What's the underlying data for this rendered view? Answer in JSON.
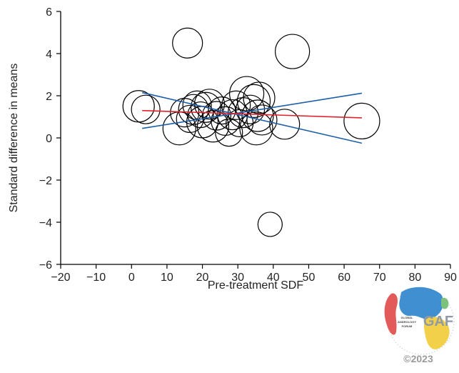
{
  "chart_data": {
    "type": "scatter",
    "title": "",
    "xlabel": "Pre-treatment SDF",
    "ylabel": "Standard difference in means",
    "xlim": [
      -20,
      90
    ],
    "ylim": [
      -6,
      6
    ],
    "x_ticks": [
      -20,
      -10,
      0,
      10,
      20,
      30,
      40,
      50,
      60,
      70,
      80,
      90
    ],
    "y_ticks": [
      -6,
      -4,
      -2,
      0,
      2,
      4,
      6
    ],
    "x_tick_labels": [
      "−20",
      "−10",
      "0",
      "10",
      "20",
      "30",
      "40",
      "50",
      "60",
      "70",
      "80",
      "90"
    ],
    "y_tick_labels": [
      "−6",
      "−4",
      "−2",
      "0",
      "2",
      "4",
      "6"
    ],
    "grid": false,
    "bubble_color": "#000000",
    "regression_color": "#e0202a",
    "confidence_color": "#1f5fa8",
    "bubbles": [
      {
        "x": 2,
        "y": 1.5,
        "weight": 22
      },
      {
        "x": 4,
        "y": 1.35,
        "weight": 20
      },
      {
        "x": 15.8,
        "y": 4.5,
        "weight": 21
      },
      {
        "x": 45.4,
        "y": 4.1,
        "weight": 24
      },
      {
        "x": 39.1,
        "y": -4.1,
        "weight": 17
      },
      {
        "x": 65,
        "y": 0.8,
        "weight": 25
      },
      {
        "x": 13.5,
        "y": 0.45,
        "weight": 23
      },
      {
        "x": 15,
        "y": 1.2,
        "weight": 20
      },
      {
        "x": 16.5,
        "y": 0.9,
        "weight": 19
      },
      {
        "x": 17.5,
        "y": 1.35,
        "weight": 21
      },
      {
        "x": 18.5,
        "y": 1.55,
        "weight": 20
      },
      {
        "x": 19.5,
        "y": 1.1,
        "weight": 18
      },
      {
        "x": 20,
        "y": 0.75,
        "weight": 22
      },
      {
        "x": 21,
        "y": 1.45,
        "weight": 21
      },
      {
        "x": 22,
        "y": 1.6,
        "weight": 21
      },
      {
        "x": 23,
        "y": 0.55,
        "weight": 22
      },
      {
        "x": 24,
        "y": 1.05,
        "weight": 20
      },
      {
        "x": 25.5,
        "y": 1.3,
        "weight": 19
      },
      {
        "x": 26.5,
        "y": 0.8,
        "weight": 20
      },
      {
        "x": 27.5,
        "y": 0.25,
        "weight": 19
      },
      {
        "x": 28.5,
        "y": 1.1,
        "weight": 21
      },
      {
        "x": 29.5,
        "y": 1.55,
        "weight": 20
      },
      {
        "x": 30.5,
        "y": 0.7,
        "weight": 19
      },
      {
        "x": 31.5,
        "y": 1.2,
        "weight": 21
      },
      {
        "x": 32.5,
        "y": 2.1,
        "weight": 24
      },
      {
        "x": 33.5,
        "y": 1.35,
        "weight": 20
      },
      {
        "x": 34.5,
        "y": 1.75,
        "weight": 23
      },
      {
        "x": 35.2,
        "y": 0.45,
        "weight": 23
      },
      {
        "x": 35.6,
        "y": 1.05,
        "weight": 22
      },
      {
        "x": 36,
        "y": 1.9,
        "weight": 22
      },
      {
        "x": 36.8,
        "y": 0.85,
        "weight": 21
      },
      {
        "x": 43.2,
        "y": 0.65,
        "weight": 21
      }
    ],
    "regression_line": {
      "x": [
        3,
        65
      ],
      "y": [
        1.3,
        0.95
      ]
    },
    "ci_lines": [
      {
        "x": [
          3,
          65
        ],
        "y": [
          2.15,
          -0.25
        ]
      },
      {
        "x": [
          3,
          65
        ],
        "y": [
          0.45,
          2.12
        ]
      }
    ]
  },
  "watermark": {
    "logo_lines": [
      "GLOBAL",
      "ANDROLOGY",
      "FORUM"
    ],
    "logo_abbrev": "GAF",
    "copyright": "©2023",
    "colors": {
      "red": "#e25a5a",
      "blue": "#3f8fd1",
      "yellow": "#f2d04a",
      "green": "#7cc27c"
    }
  }
}
